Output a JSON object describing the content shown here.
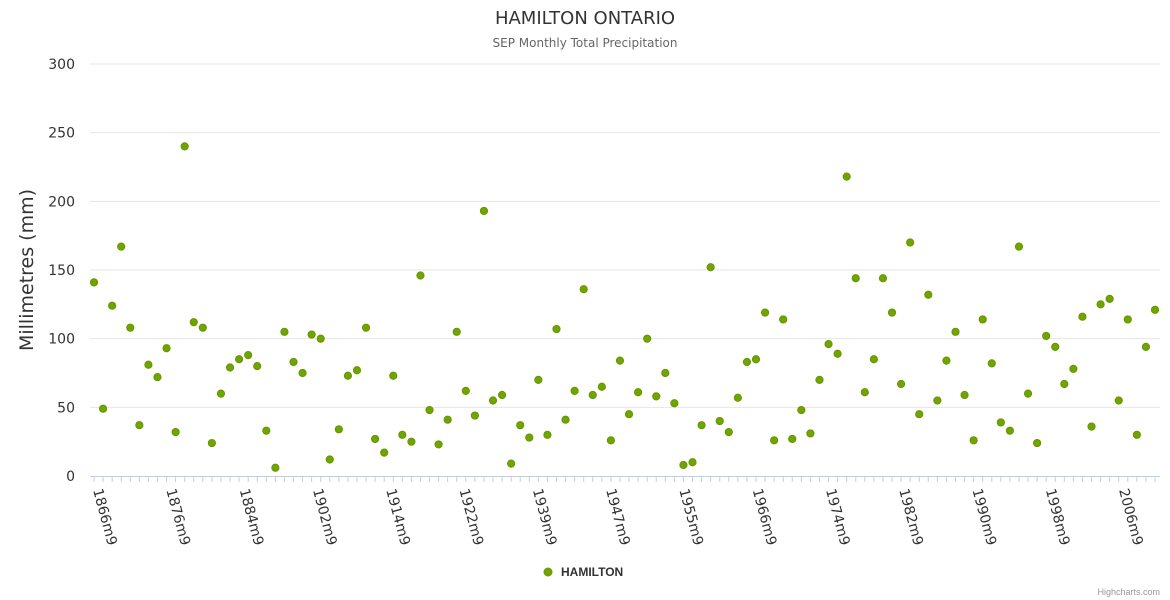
{
  "chart_data": {
    "type": "scatter",
    "title": "HAMILTON ONTARIO",
    "subtitle": "SEP Monthly Total Precipitation",
    "ylabel": "Millimetres (mm)",
    "xlabel": "",
    "ylim": [
      0,
      300
    ],
    "yticks": [
      0,
      50,
      100,
      150,
      200,
      250,
      300
    ],
    "xtick_labels": [
      "1866m9",
      "1876m9",
      "1884m9",
      "1902m9",
      "1914m9",
      "1922m9",
      "1939m9",
      "1947m9",
      "1955m9",
      "1966m9",
      "1974m9",
      "1982m9",
      "1990m9",
      "1998m9",
      "2006m9"
    ],
    "series": [
      {
        "name": "HAMILTON",
        "color": "#66aa00",
        "values": [
          141,
          49,
          124,
          167,
          108,
          37,
          81,
          72,
          93,
          32,
          240,
          112,
          108,
          24,
          60,
          79,
          85,
          88,
          80,
          33,
          6,
          105,
          83,
          75,
          103,
          100,
          12,
          34,
          73,
          77,
          108,
          27,
          17,
          73,
          30,
          25,
          146,
          48,
          23,
          41,
          105,
          62,
          44,
          193,
          55,
          59,
          9,
          37,
          28,
          70,
          30,
          107,
          41,
          62,
          136,
          59,
          65,
          26,
          84,
          45,
          61,
          100,
          58,
          75,
          53,
          8,
          10,
          37,
          152,
          40,
          32,
          57,
          83,
          85,
          119,
          26,
          114,
          27,
          48,
          31,
          70,
          96,
          89,
          218,
          144,
          61,
          85,
          144,
          119,
          67,
          170,
          45,
          132,
          55,
          84,
          105,
          59,
          26,
          114,
          82,
          39,
          33,
          167,
          60,
          24,
          102,
          94,
          67,
          78,
          116,
          36,
          125,
          129,
          55,
          114,
          30,
          94,
          121
        ]
      }
    ],
    "legend": {
      "position": "bottom-center"
    }
  },
  "credits": "Highcharts.com"
}
